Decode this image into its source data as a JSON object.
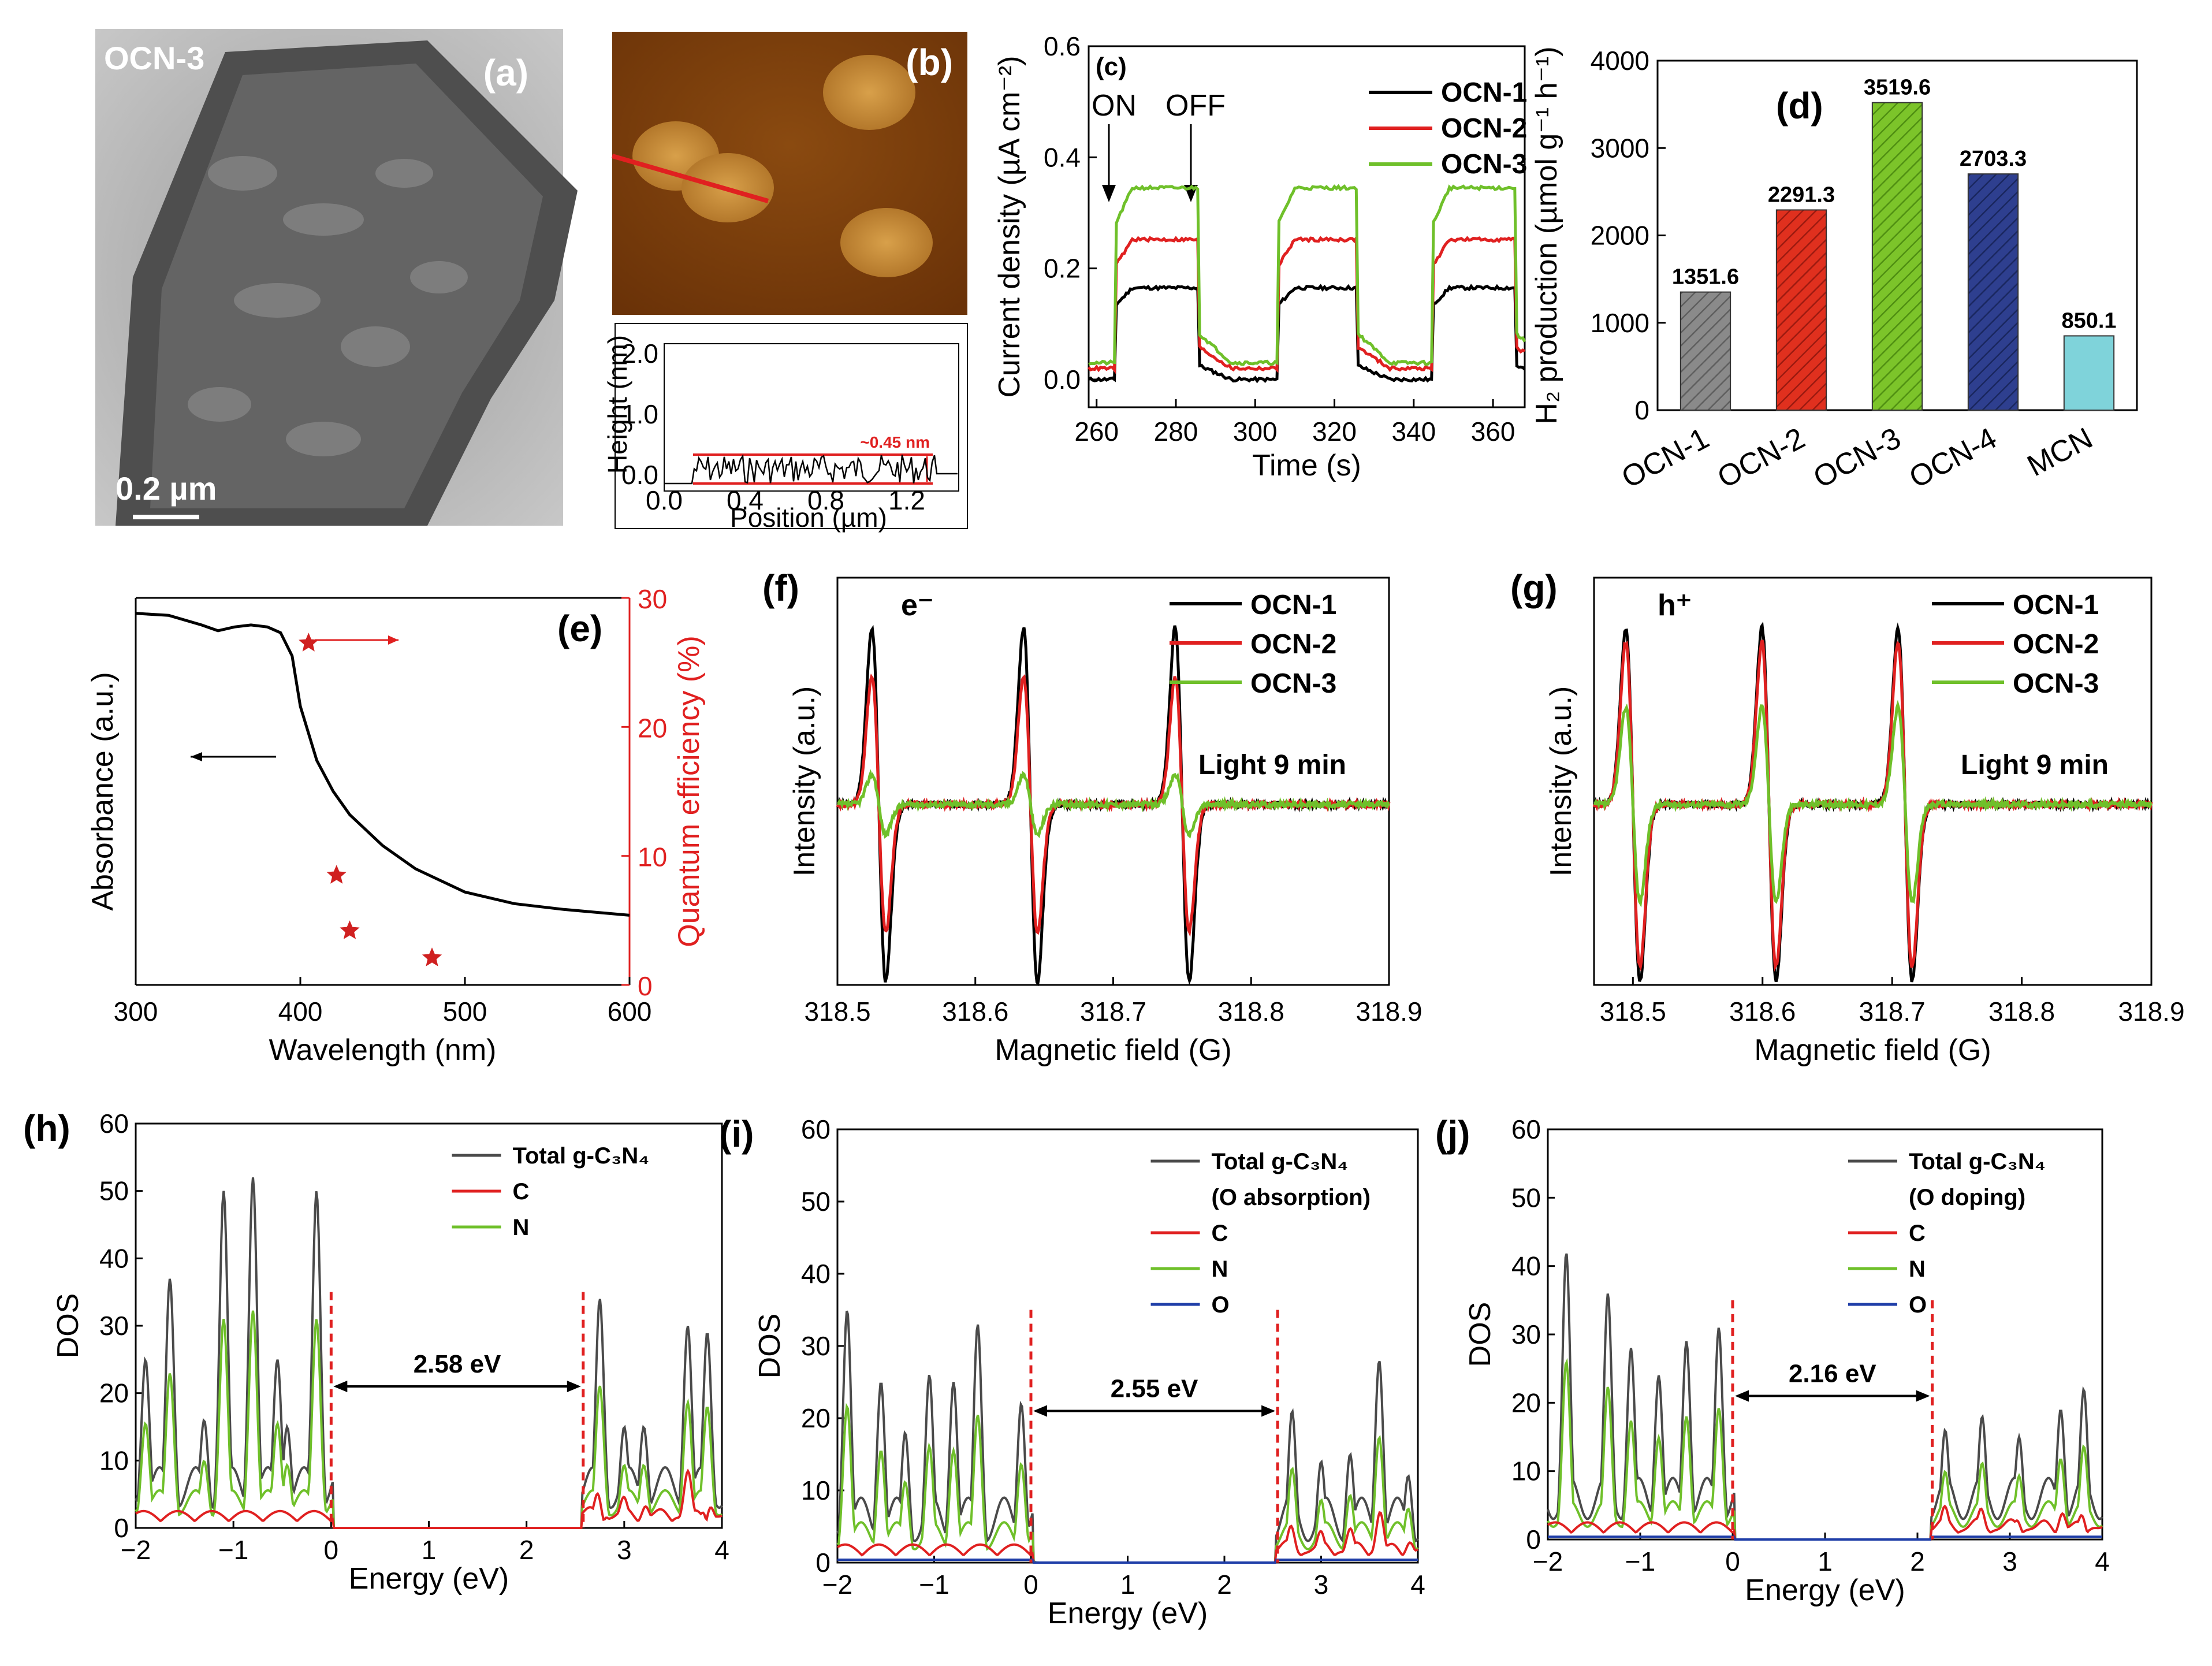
{
  "colors": {
    "black": "#000000",
    "red": "#e02020",
    "green": "#6fc02a",
    "blue": "#1f3ea8",
    "gray": "#555555",
    "dos_gray": "#4a4a4a"
  },
  "panel_a": {
    "label": "(a)",
    "sample": "OCN-3",
    "scalebar": "0.2 µm"
  },
  "panel_b": {
    "label": "(b)",
    "ylabel": "Height (nm)",
    "xlabel": "Position (µm)",
    "annotation": "~0.45 nm",
    "xticks": [
      "0.0",
      "0.4",
      "0.8",
      "1.2"
    ],
    "yticks": [
      "0.0",
      "1.0",
      "2.0"
    ]
  },
  "chart_data": [
    {
      "panel": "(c)",
      "type": "line",
      "title": "",
      "xlabel": "Time (s)",
      "ylabel": "Current density (µA cm⁻²)",
      "xlim": [
        258,
        368
      ],
      "ylim": [
        -0.05,
        0.6
      ],
      "xticks": [
        "260",
        "280",
        "300",
        "320",
        "340",
        "360"
      ],
      "yticks": [
        "0.0",
        "0.2",
        "0.4",
        "0.6"
      ],
      "annotations": [
        "ON",
        "OFF"
      ],
      "series": [
        {
          "name": "OCN-1",
          "color": "#000000",
          "on_level": 0.165,
          "off_level": 0.0
        },
        {
          "name": "OCN-2",
          "color": "#e02020",
          "on_level": 0.252,
          "off_level": 0.02
        },
        {
          "name": "OCN-3",
          "color": "#6fc02a",
          "on_level": 0.345,
          "off_level": 0.03
        }
      ],
      "on_off_periods": [
        [
          265,
          286
        ],
        [
          306,
          326
        ],
        [
          345,
          366
        ]
      ]
    },
    {
      "panel": "(d)",
      "type": "bar",
      "title": "",
      "xlabel": "",
      "ylabel": "H₂ production (µmol g⁻¹ h⁻¹)",
      "ylim": [
        0,
        4000
      ],
      "yticks": [
        "0",
        "1000",
        "2000",
        "3000",
        "4000"
      ],
      "categories": [
        "OCN-1",
        "OCN-2",
        "OCN-3",
        "OCN-4",
        "MCN"
      ],
      "values": [
        1351.6,
        2291.3,
        3519.6,
        2703.3,
        850.1
      ],
      "value_labels": [
        "1351.6",
        "2291.3",
        "3519.6",
        "2703.3",
        "850.1"
      ],
      "bar_colors": [
        "#8a8a8a",
        "#e0301e",
        "#7cc42a",
        "#2e3f8f",
        "#7fd3da"
      ]
    },
    {
      "panel": "(e)",
      "type": "line",
      "xlabel": "Wavelength (nm)",
      "ylabel": "Absorbance (a.u.)",
      "y2label": "Quantum efficiency (%)",
      "xlim": [
        300,
        600
      ],
      "y2lim": [
        0,
        30
      ],
      "xticks": [
        "300",
        "400",
        "500",
        "600"
      ],
      "y2ticks": [
        "0",
        "10",
        "20",
        "30"
      ],
      "absorbance_x": [
        300,
        320,
        340,
        350,
        360,
        370,
        380,
        388,
        395,
        400,
        410,
        420,
        430,
        450,
        470,
        500,
        530,
        560,
        600
      ],
      "absorbance_y": [
        0.96,
        0.955,
        0.93,
        0.915,
        0.925,
        0.93,
        0.925,
        0.91,
        0.85,
        0.72,
        0.58,
        0.5,
        0.44,
        0.36,
        0.3,
        0.24,
        0.21,
        0.195,
        0.18
      ],
      "qe_points": [
        [
          405,
          26.5
        ],
        [
          422,
          8.5
        ],
        [
          430,
          4.2
        ],
        [
          480,
          2.1
        ]
      ]
    },
    {
      "panel": "(f)",
      "type": "line",
      "xlabel": "Magnetic field (G)",
      "ylabel": "Intensity (a.u.)",
      "tag": "e⁻",
      "note": "Light 9 min",
      "xlim": [
        318.5,
        318.9
      ],
      "xticks": [
        "318.5",
        "318.6",
        "318.7",
        "318.8",
        "318.9"
      ],
      "line_centers": [
        318.53,
        318.64,
        318.75
      ],
      "series": [
        {
          "name": "OCN-1",
          "color": "#000000",
          "amp": 1.0
        },
        {
          "name": "OCN-2",
          "color": "#e02020",
          "amp": 0.72
        },
        {
          "name": "OCN-3",
          "color": "#6fc02a",
          "amp": 0.17
        }
      ]
    },
    {
      "panel": "(g)",
      "type": "line",
      "xlabel": "Magnetic field (G)",
      "ylabel": "Intensity (a.u.)",
      "tag": "h⁺",
      "note": "Light 9 min",
      "xlim": [
        318.47,
        318.9
      ],
      "xticks": [
        "318.5",
        "318.6",
        "318.7",
        "318.8",
        "318.9"
      ],
      "line_centers": [
        318.5,
        318.605,
        318.71
      ],
      "series": [
        {
          "name": "OCN-1",
          "color": "#000000",
          "amp": 1.0
        },
        {
          "name": "OCN-2",
          "color": "#e02020",
          "amp": 0.92
        },
        {
          "name": "OCN-3",
          "color": "#6fc02a",
          "amp": 0.55
        }
      ]
    },
    {
      "panel": "(h)",
      "type": "area",
      "xlabel": "Energy (eV)",
      "ylabel": "DOS",
      "xlim": [
        -2,
        4
      ],
      "ylim": [
        0,
        60
      ],
      "xticks": [
        "−2",
        "−1",
        "0",
        "1",
        "2",
        "3",
        "4"
      ],
      "yticks": [
        "0",
        "10",
        "20",
        "30",
        "40",
        "50",
        "60"
      ],
      "gap_label": "2.58 eV",
      "gap": [
        0,
        2.58
      ],
      "legend": [
        "Total g-C₃N₄",
        "C",
        "N"
      ],
      "peaks_total": [
        [
          -1.9,
          25
        ],
        [
          -1.65,
          37
        ],
        [
          -1.3,
          16
        ],
        [
          -1.1,
          50
        ],
        [
          -0.8,
          52
        ],
        [
          -0.55,
          25
        ],
        [
          -0.45,
          15
        ],
        [
          -0.15,
          50
        ],
        [
          2.75,
          34
        ],
        [
          3.0,
          15
        ],
        [
          3.2,
          15
        ],
        [
          3.65,
          30
        ],
        [
          3.85,
          29
        ]
      ]
    },
    {
      "panel": "(i)",
      "type": "area",
      "xlabel": "Energy (eV)",
      "ylabel": "DOS",
      "xlim": [
        -2,
        4
      ],
      "ylim": [
        0,
        60
      ],
      "xticks": [
        "−2",
        "−1",
        "0",
        "1",
        "2",
        "3",
        "4"
      ],
      "yticks": [
        "0",
        "10",
        "20",
        "30",
        "40",
        "50",
        "60"
      ],
      "gap_label": "2.55 eV",
      "gap": [
        0,
        2.55
      ],
      "legend": [
        "Total g-C₃N₄",
        "(O absorption)",
        "C",
        "N",
        "O"
      ],
      "peaks_total": [
        [
          -1.9,
          35
        ],
        [
          -1.55,
          25
        ],
        [
          -1.3,
          18
        ],
        [
          -1.05,
          26
        ],
        [
          -0.8,
          25
        ],
        [
          -0.55,
          33
        ],
        [
          -0.1,
          22
        ],
        [
          2.7,
          21
        ],
        [
          3.0,
          14
        ],
        [
          3.3,
          15
        ],
        [
          3.6,
          28
        ],
        [
          3.9,
          12
        ]
      ]
    },
    {
      "panel": "(j)",
      "type": "area",
      "xlabel": "Energy (eV)",
      "ylabel": "DOS",
      "xlim": [
        -2,
        4
      ],
      "ylim": [
        0,
        60
      ],
      "xticks": [
        "−2",
        "−1",
        "0",
        "1",
        "2",
        "3",
        "4"
      ],
      "yticks": [
        "0",
        "10",
        "20",
        "30",
        "40",
        "50",
        "60"
      ],
      "gap_label": "2.16 eV",
      "gap": [
        0,
        2.16
      ],
      "legend": [
        "Total g-C₃N₄",
        "(O doping)",
        "C",
        "N",
        "O"
      ],
      "peaks_total": [
        [
          -1.8,
          42
        ],
        [
          -1.35,
          36
        ],
        [
          -1.1,
          28
        ],
        [
          -0.8,
          24
        ],
        [
          -0.5,
          29
        ],
        [
          -0.15,
          31
        ],
        [
          2.3,
          16
        ],
        [
          2.7,
          18
        ],
        [
          3.1,
          15
        ],
        [
          3.55,
          19
        ],
        [
          3.8,
          22
        ]
      ]
    }
  ]
}
